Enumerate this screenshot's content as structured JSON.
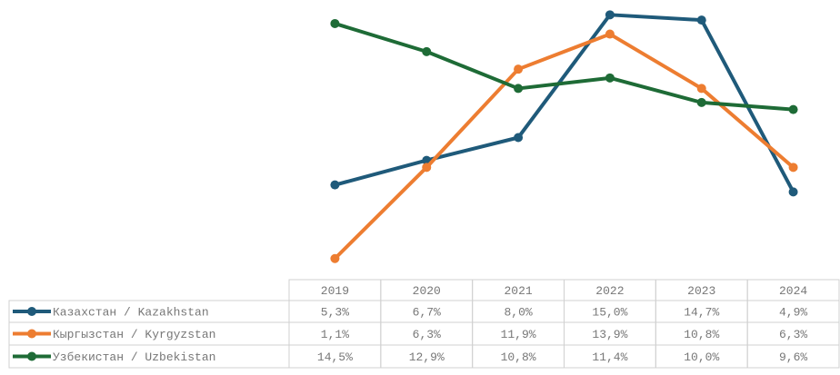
{
  "chart_data": {
    "type": "line",
    "categories": [
      "2019",
      "2020",
      "2021",
      "2022",
      "2023",
      "2024"
    ],
    "series": [
      {
        "name": "Казахстан / Kazakhstan",
        "color": "#1f5a7a",
        "values": [
          5.3,
          6.7,
          8.0,
          15.0,
          14.7,
          4.9
        ],
        "value_labels": [
          "5,3%",
          "6,7%",
          "8,0%",
          "15,0%",
          "14,7%",
          "4,9%"
        ]
      },
      {
        "name": "Кыргызстан / Kyrgyzstan",
        "color": "#ed7d31",
        "values": [
          1.1,
          6.3,
          11.9,
          13.9,
          10.8,
          6.3
        ],
        "value_labels": [
          "1,1%",
          "6,3%",
          "11,9%",
          "13,9%",
          "10,8%",
          "6,3%"
        ]
      },
      {
        "name": "Узбекистан / Uzbekistan",
        "color": "#1e6b36",
        "values": [
          14.5,
          12.9,
          10.8,
          11.4,
          10.0,
          9.6
        ],
        "value_labels": [
          "14,5%",
          "12,9%",
          "10,8%",
          "11,4%",
          "10,0%",
          "9,6%"
        ]
      }
    ],
    "ylim": [
      0,
      16
    ]
  }
}
